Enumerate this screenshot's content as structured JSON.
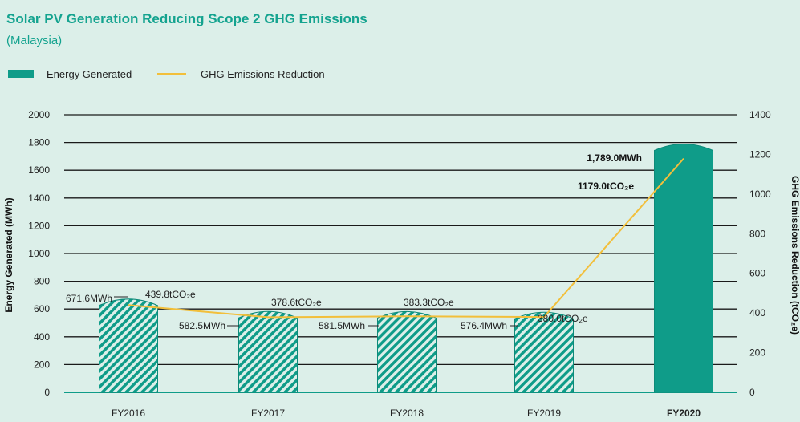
{
  "title": "Solar PV Generation Reducing Scope 2 GHG Emissions",
  "subtitle": "(Malaysia)",
  "colors": {
    "bar": "#0f9c89",
    "bar_stroke": "#0d8a79",
    "line": "#f2bf3b",
    "grid": "#1a1a1a",
    "axis_text": "#222222"
  },
  "chart_data": {
    "type": "bar",
    "title": "Solar PV Generation Reducing Scope 2 GHG Emissions",
    "subtitle": "(Malaysia)",
    "categories": [
      "FY2016",
      "FY2017",
      "FY2018",
      "FY2019",
      "FY2020"
    ],
    "series": [
      {
        "name": "Energy Generated",
        "type": "bar",
        "axis": "left",
        "values": [
          671.6,
          582.5,
          581.5,
          576.4,
          1789.0
        ],
        "labels": [
          "671.6MWh",
          "582.5MWh",
          "581.5MWh",
          "576.4MWh",
          "1,789.0MWh"
        ]
      },
      {
        "name": "GHG Emissions Reduction",
        "type": "line",
        "axis": "right",
        "values": [
          439.8,
          378.6,
          383.3,
          380.0,
          1179.0
        ],
        "labels": [
          "439.8tCO₂e",
          "378.6tCO₂e",
          "383.3tCO₂e",
          "380.0tCO₂e",
          "1179.0tCO₂e"
        ]
      }
    ],
    "ylabel": "Energy Generated (MWh)",
    "ylabel_right": "GHG Emissions Reduction (tCO₂e)",
    "ylim": [
      0,
      2000
    ],
    "ylim_right": [
      0,
      1400
    ],
    "yticks": [
      "0",
      "200",
      "400",
      "600",
      "800",
      "1000",
      "1200",
      "1400",
      "1600",
      "1800",
      "2000"
    ],
    "yticks_right": [
      "0",
      "200",
      "400",
      "600",
      "800",
      "1000",
      "1200",
      "1400"
    ],
    "grid": true,
    "legend_position": "top-left"
  }
}
